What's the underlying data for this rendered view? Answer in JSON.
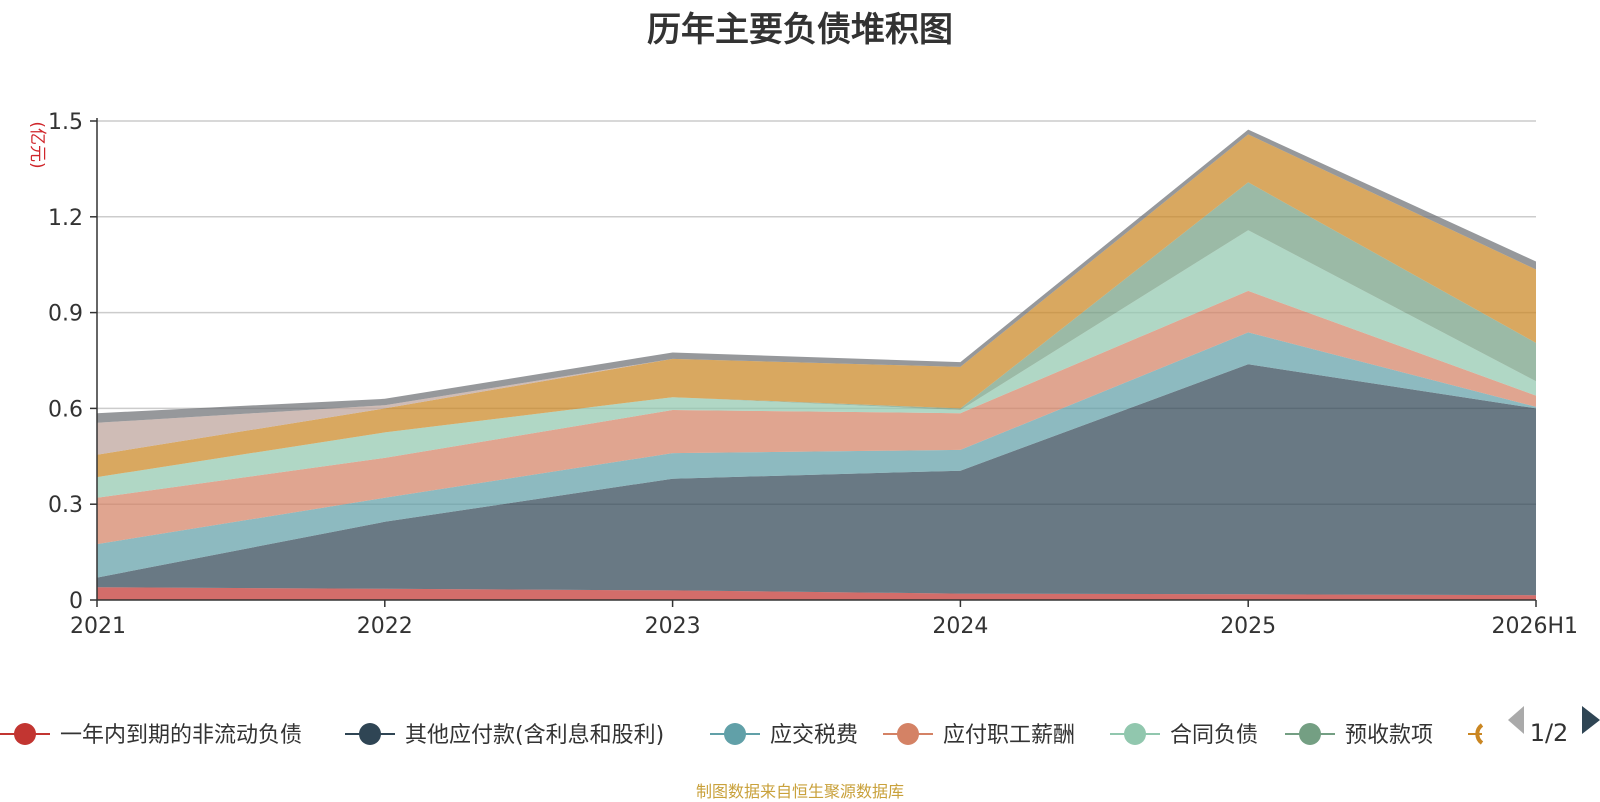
{
  "page": {
    "title": "历年主要负债堆积图",
    "source_note": "制图数据来自恒生聚源数据库",
    "unit_label": "(亿元)",
    "legend_page": "1/2"
  },
  "chart_data": {
    "type": "area",
    "stacked": true,
    "title": "历年主要负债堆积图",
    "ylabel": "(亿元)",
    "xlabel": "",
    "categories": [
      "2021",
      "2022",
      "2023",
      "2024",
      "2025",
      "2026H1"
    ],
    "ylim": [
      0,
      1.5
    ],
    "yticks": [
      0,
      0.3,
      0.6,
      0.9,
      1.2,
      1.5
    ],
    "ytick_labels": [
      "0",
      "0.3",
      "0.6",
      "0.9",
      "1.2",
      "1.5"
    ],
    "grid": true,
    "legend_position": "bottom",
    "series": [
      {
        "name": "一年内到期的非流动负债",
        "color": "#c23531",
        "values": [
          0.04,
          0.035,
          0.03,
          0.02,
          0.018,
          0.015
        ],
        "show_in_legend": true
      },
      {
        "name": "其他应付款(含利息和股利)",
        "color": "#2f4554",
        "values": [
          0.03,
          0.21,
          0.35,
          0.385,
          0.72,
          0.585
        ],
        "show_in_legend": true
      },
      {
        "name": "应交税费",
        "color": "#61a0a8",
        "values": [
          0.105,
          0.075,
          0.08,
          0.065,
          0.1,
          0.005
        ],
        "show_in_legend": true
      },
      {
        "name": "应付职工薪酬",
        "color": "#d48265",
        "values": [
          0.145,
          0.125,
          0.135,
          0.115,
          0.13,
          0.035
        ],
        "show_in_legend": true
      },
      {
        "name": "合同负债",
        "color": "#91c7ae",
        "values": [
          0.065,
          0.08,
          0.04,
          0.01,
          0.19,
          0.045
        ],
        "show_in_legend": true
      },
      {
        "name": "预收款项",
        "color": "#749f83",
        "values": [
          0,
          0,
          0,
          0.005,
          0.15,
          0.12
        ],
        "show_in_legend": true
      },
      {
        "name": "",
        "color": "#ca8622",
        "values": [
          0.07,
          0.075,
          0.12,
          0.13,
          0.15,
          0.23
        ],
        "show_in_legend": false
      },
      {
        "name": "",
        "color": "#bda29a",
        "values": [
          0.1,
          0.01,
          0,
          0,
          0,
          0
        ],
        "show_in_legend": false
      },
      {
        "name": "",
        "color": "#6e7074",
        "values": [
          0.03,
          0.02,
          0.02,
          0.015,
          0.015,
          0.025
        ],
        "show_in_legend": false
      }
    ],
    "legend_overflow_color": "#ca8622"
  }
}
